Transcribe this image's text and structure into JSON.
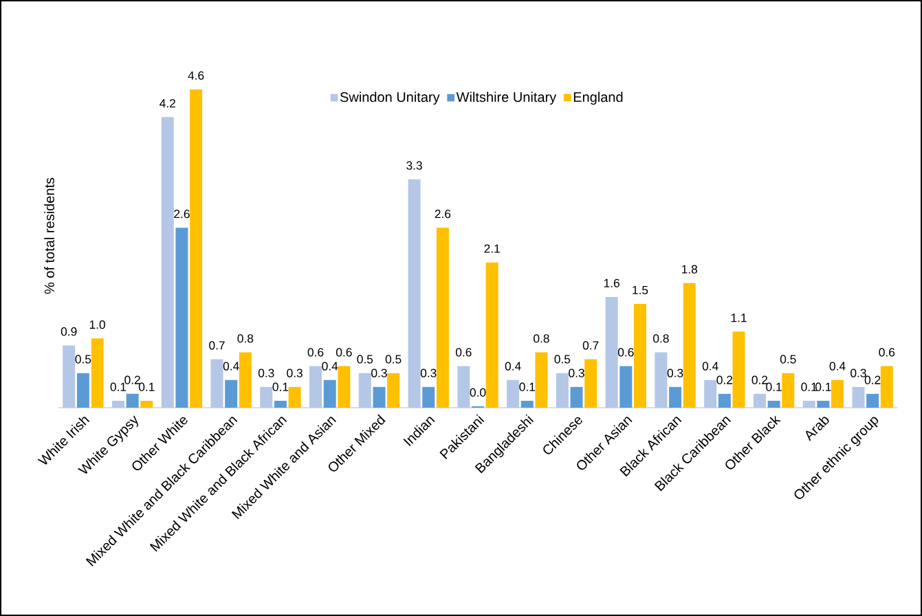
{
  "chart_data": {
    "type": "bar",
    "ylabel": "% of total residents",
    "categories": [
      "White Irish",
      "White Gypsy",
      "Other White",
      "Mixed White and Black Caribbean",
      "Mixed White and Black African",
      "Mixed White and Asian",
      "Other Mixed",
      "Indian",
      "Pakistani",
      "Bangladeshi",
      "Chinese",
      "Other Asian",
      "Black African",
      "Black Caribbean",
      "Other Black",
      "Arab",
      "Other ethnic group"
    ],
    "series": [
      {
        "name": "Swindon Unitary",
        "color": "#b4c7e7",
        "values": [
          0.9,
          0.1,
          4.2,
          0.7,
          0.3,
          0.6,
          0.5,
          3.3,
          0.6,
          0.4,
          0.5,
          1.6,
          0.8,
          0.4,
          0.2,
          0.1,
          0.3
        ],
        "value_labels": [
          "0.9",
          "0.1",
          "4.2",
          "0.7",
          "0.3",
          "0.6",
          "0.5",
          "3.3",
          "0.6",
          "0.4",
          "0.5",
          "1.6",
          "0.8",
          "0.4",
          "0.2",
          "0.1",
          "0.3"
        ]
      },
      {
        "name": "Wiltshire Unitary",
        "color": "#5b9bd5",
        "values": [
          0.5,
          0.2,
          2.6,
          0.4,
          0.1,
          0.4,
          0.3,
          0.3,
          0.02,
          0.1,
          0.3,
          0.6,
          0.3,
          0.2,
          0.1,
          0.1,
          0.2
        ],
        "value_labels": [
          "0.5",
          "0.2",
          "2.6",
          "0.4",
          "0.1",
          "0.4",
          "0.3",
          "0.3",
          "0.0",
          "0.1",
          "0.3",
          "0.6",
          "0.3",
          "0.2",
          "0.1",
          "0.1",
          "0.2"
        ]
      },
      {
        "name": "England",
        "color": "#ffc000",
        "values": [
          1.0,
          0.1,
          4.6,
          0.8,
          0.3,
          0.6,
          0.5,
          2.6,
          2.1,
          0.8,
          0.7,
          1.5,
          1.8,
          1.1,
          0.5,
          0.4,
          0.6
        ],
        "value_labels": [
          "1.0",
          "0.1",
          "4.6",
          "0.8",
          "0.3",
          "0.6",
          "0.5",
          "2.6",
          "2.1",
          "0.8",
          "0.7",
          "1.5",
          "1.8",
          "1.1",
          "0.5",
          "0.4",
          "0.6"
        ]
      }
    ],
    "legend": "top"
  }
}
